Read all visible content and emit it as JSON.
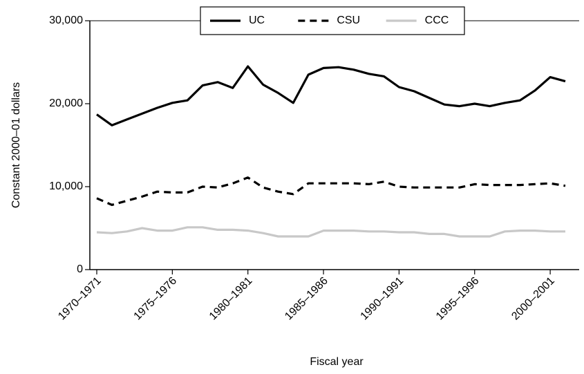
{
  "chart_data": {
    "type": "line",
    "x_label": "Fiscal year",
    "y_label": "Constant 2000–01 dollars",
    "categories": [
      "1970–1971",
      null,
      null,
      null,
      null,
      "1975–1976",
      null,
      null,
      null,
      null,
      "1980–1981",
      null,
      null,
      null,
      null,
      "1985–1986",
      null,
      null,
      null,
      null,
      "1990–1991",
      null,
      null,
      null,
      null,
      "1995–1996",
      null,
      null,
      null,
      null,
      "2000–2001",
      null
    ],
    "series": [
      {
        "name": "UC",
        "color": "#000000",
        "dash": "solid",
        "values": [
          18700,
          17400,
          18100,
          18800,
          19500,
          20100,
          20400,
          22200,
          22600,
          21900,
          24500,
          22300,
          21300,
          20100,
          23500,
          24300,
          24400,
          24100,
          23600,
          23300,
          22000,
          21500,
          20700,
          19900,
          19700,
          20000,
          19700,
          20100,
          20400,
          21600,
          23200,
          22700
        ]
      },
      {
        "name": "CSU",
        "color": "#000000",
        "dash": "dashed",
        "values": [
          8600,
          7800,
          8300,
          8800,
          9400,
          9300,
          9300,
          10000,
          9900,
          10400,
          11100,
          9900,
          9400,
          9100,
          10400,
          10400,
          10400,
          10400,
          10300,
          10600,
          10000,
          9900,
          9900,
          9900,
          9900,
          10300,
          10200,
          10200,
          10200,
          10300,
          10400,
          10100
        ]
      },
      {
        "name": "CCC",
        "color": "#c8c8c8",
        "dash": "solid",
        "values": [
          4500,
          4400,
          4600,
          5000,
          4700,
          4700,
          5100,
          5100,
          4800,
          4800,
          4700,
          4400,
          4000,
          4000,
          4000,
          4700,
          4700,
          4700,
          4600,
          4600,
          4500,
          4500,
          4300,
          4300,
          4000,
          4000,
          4000,
          4600,
          4700,
          4700,
          4600,
          4600
        ]
      }
    ],
    "ylim": [
      0,
      30000
    ],
    "yticks": [
      0,
      {
        "value": 10000,
        "label": "10,000"
      },
      {
        "value": 20000,
        "label": "20,000"
      },
      {
        "value": 30000,
        "label": "30,000"
      }
    ],
    "legend": "top"
  }
}
